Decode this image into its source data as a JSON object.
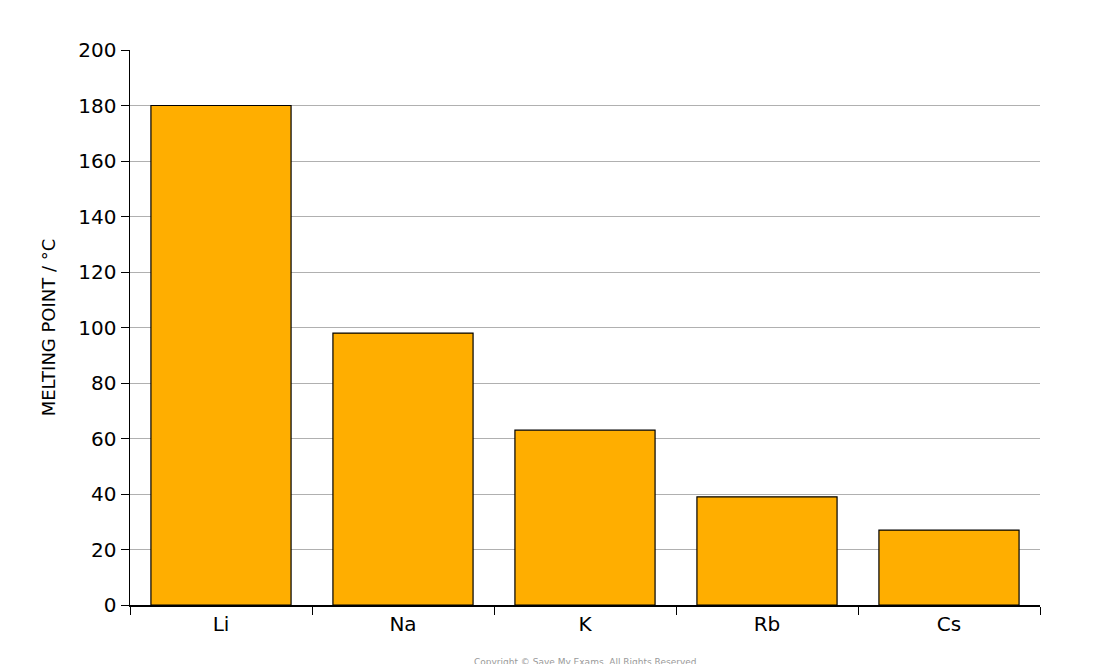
{
  "chart_data": {
    "type": "bar",
    "y_label": "MELTING POINT / °C",
    "categories": [
      "Li",
      "Na",
      "K",
      "Rb",
      "Cs"
    ],
    "values": [
      180,
      98,
      63,
      39,
      27
    ],
    "color": "#ffae00",
    "ylim": [
      0,
      200
    ],
    "yticks": [
      0,
      20,
      40,
      60,
      80,
      100,
      120,
      140,
      160,
      180,
      200
    ],
    "grid": true,
    "annotations": [
      "Copyright © Save My Exams. All Rights Reserved"
    ]
  }
}
